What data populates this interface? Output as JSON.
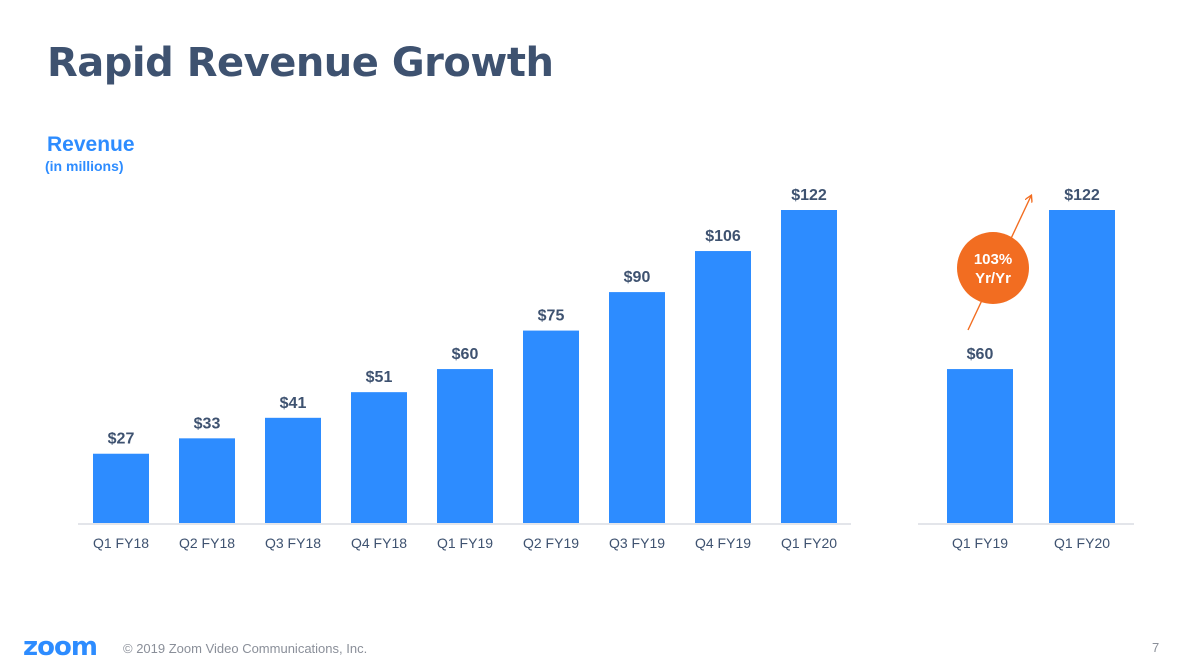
{
  "title": "Rapid Revenue Growth",
  "colors": {
    "bar": "#2d8cff",
    "title": "#3e5270",
    "accent": "#f26d21",
    "axis": "#e3e5ea",
    "muted": "#8a8f99"
  },
  "chart_data": [
    {
      "type": "bar",
      "title": "Revenue",
      "ylabel": "(in millions)",
      "categories": [
        "Q1 FY18",
        "Q2 FY18",
        "Q3 FY18",
        "Q4 FY18",
        "Q1 FY19",
        "Q2 FY19",
        "Q3 FY19",
        "Q4 FY19",
        "Q1 FY20"
      ],
      "values": [
        27,
        33,
        41,
        51,
        60,
        75,
        90,
        106,
        122
      ],
      "data_labels": [
        "$27",
        "$33",
        "$41",
        "$51",
        "$60",
        "$75",
        "$90",
        "$106",
        "$122"
      ],
      "ylim": [
        0,
        122
      ],
      "grid": false
    },
    {
      "type": "bar",
      "categories": [
        "Q1 FY19",
        "Q1 FY20"
      ],
      "values": [
        60,
        122
      ],
      "data_labels": [
        "$60",
        "$122"
      ],
      "ylim": [
        0,
        122
      ],
      "grid": false,
      "annotation": {
        "line1": "103%",
        "line2": "Yr/Yr"
      }
    }
  ],
  "footer": {
    "logo": "zoom",
    "copyright": "© 2019 Zoom Video Communications, Inc.",
    "page_number": "7"
  }
}
